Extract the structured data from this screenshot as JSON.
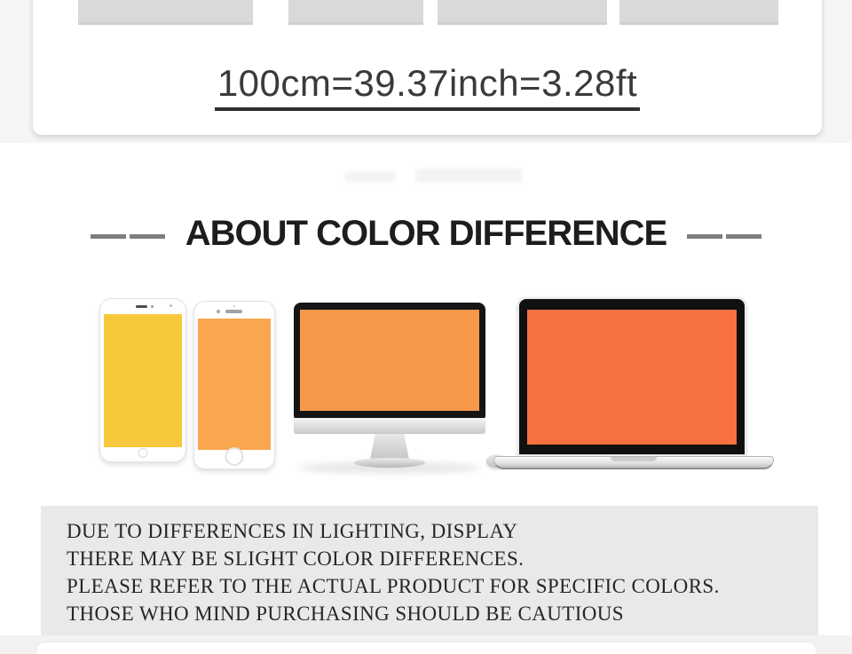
{
  "size_banner": {
    "dimension_text": "100cm=39.37inch=3.28ft"
  },
  "about_color": {
    "heading": "ABOUT COLOR DIFFERENCE"
  },
  "devices": [
    {
      "id": "phone-left",
      "type": "smartphone",
      "screen_color": "#F8C83C"
    },
    {
      "id": "phone-right",
      "type": "smartphone",
      "screen_color": "#F9A64E"
    },
    {
      "id": "desktop-monitor",
      "type": "monitor",
      "screen_color": "#F8984B"
    },
    {
      "id": "laptop",
      "type": "laptop",
      "screen_color": "#F7703F"
    }
  ],
  "disclaimer": {
    "lines": [
      "DUE TO DIFFERENCES IN LIGHTING, DISPLAY",
      "THERE MAY BE SLIGHT COLOR DIFFERENCES.",
      "PLEASE REFER TO THE ACTUAL PRODUCT FOR SPECIFIC COLORS.",
      "THOSE WHO MIND PURCHASING SHOULD BE CAUTIOUS"
    ]
  },
  "colors": {
    "page_margin": "#f5f5f6",
    "card_background": "#ffffff",
    "thumbnail_block": "#d9d9d9",
    "heading_text": "#1d1d1d",
    "dash": "#7e7e7e",
    "dimension_text": "#3a3a3a",
    "disclaimer_background": "#e9e9e9",
    "disclaimer_text": "#262626"
  }
}
